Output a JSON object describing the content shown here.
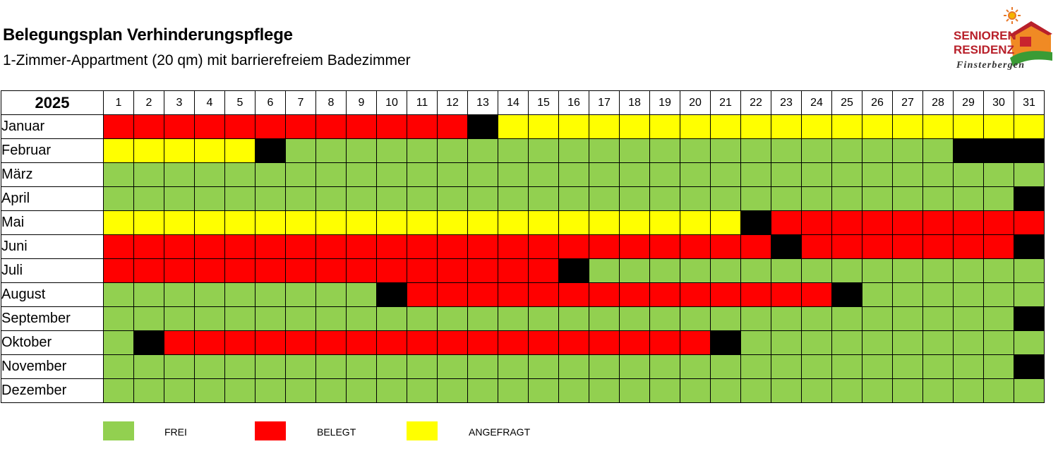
{
  "header": {
    "title": "Belegungsplan Verhinderungspflege",
    "subtitle": "1-Zimmer-Appartment (20 qm) mit barrierefreiem Badezimmer"
  },
  "logo": {
    "line1": "SENIOREN",
    "line2": "RESIDENZ",
    "line3": "Finsterbergen"
  },
  "colors": {
    "frei": "#92d050",
    "belegt": "#ff0000",
    "angefragt": "#ffff00",
    "wechsel": "#000000"
  },
  "calendar": {
    "year": "2025",
    "days": [
      "1",
      "2",
      "3",
      "4",
      "5",
      "6",
      "7",
      "8",
      "9",
      "10",
      "11",
      "12",
      "13",
      "14",
      "15",
      "16",
      "17",
      "18",
      "19",
      "20",
      "21",
      "22",
      "23",
      "24",
      "25",
      "26",
      "27",
      "28",
      "29",
      "30",
      "31"
    ],
    "months": [
      {
        "name": "Januar",
        "cells": "RRRRRRRRRRRRBYYYYYYYYYYYYYYYYYY"
      },
      {
        "name": "Februar",
        "cells": "YYYYYBGGGGGGGGGGGGGGGGGGGGGGBBB"
      },
      {
        "name": "März",
        "cells": "GGGGGGGGGGGGGGGGGGGGGGGGGGGGGGG"
      },
      {
        "name": "April",
        "cells": "GGGGGGGGGGGGGGGGGGGGGGGGGGGGGGB"
      },
      {
        "name": "Mai",
        "cells": "YYYYYYYYYYYYYYYYYYYYYBRRRRRRRRR"
      },
      {
        "name": "Juni",
        "cells": "RRRRRRRRRRRRRRRRRRRRRRBRRRRRRRB"
      },
      {
        "name": "Juli",
        "cells": "RRRRRRRRRRRRRRRBGGGGGGGGGGGGGGG"
      },
      {
        "name": "August",
        "cells": "GGGGGGGGGBRRRRRRRRRRRRRRBGGGGGG"
      },
      {
        "name": "September",
        "cells": "GGGGGGGGGGGGGGGGGGGGGGGGGGGGGGB"
      },
      {
        "name": "Oktober",
        "cells": "GBRRRRRRRRRRRRRRRRRRBGGGGGGGGGG"
      },
      {
        "name": "November",
        "cells": "GGGGGGGGGGGGGGGGGGGGGGGGGGGGGGB"
      },
      {
        "name": "Dezember",
        "cells": "GGGGGGGGGGGGGGGGGGGGGGGGGGGGGGG"
      }
    ]
  },
  "legend": [
    {
      "label": "FREI",
      "color": "#92d050"
    },
    {
      "label": "BELEGT",
      "color": "#ff0000"
    },
    {
      "label": "ANGEFRAGT",
      "color": "#ffff00"
    }
  ]
}
